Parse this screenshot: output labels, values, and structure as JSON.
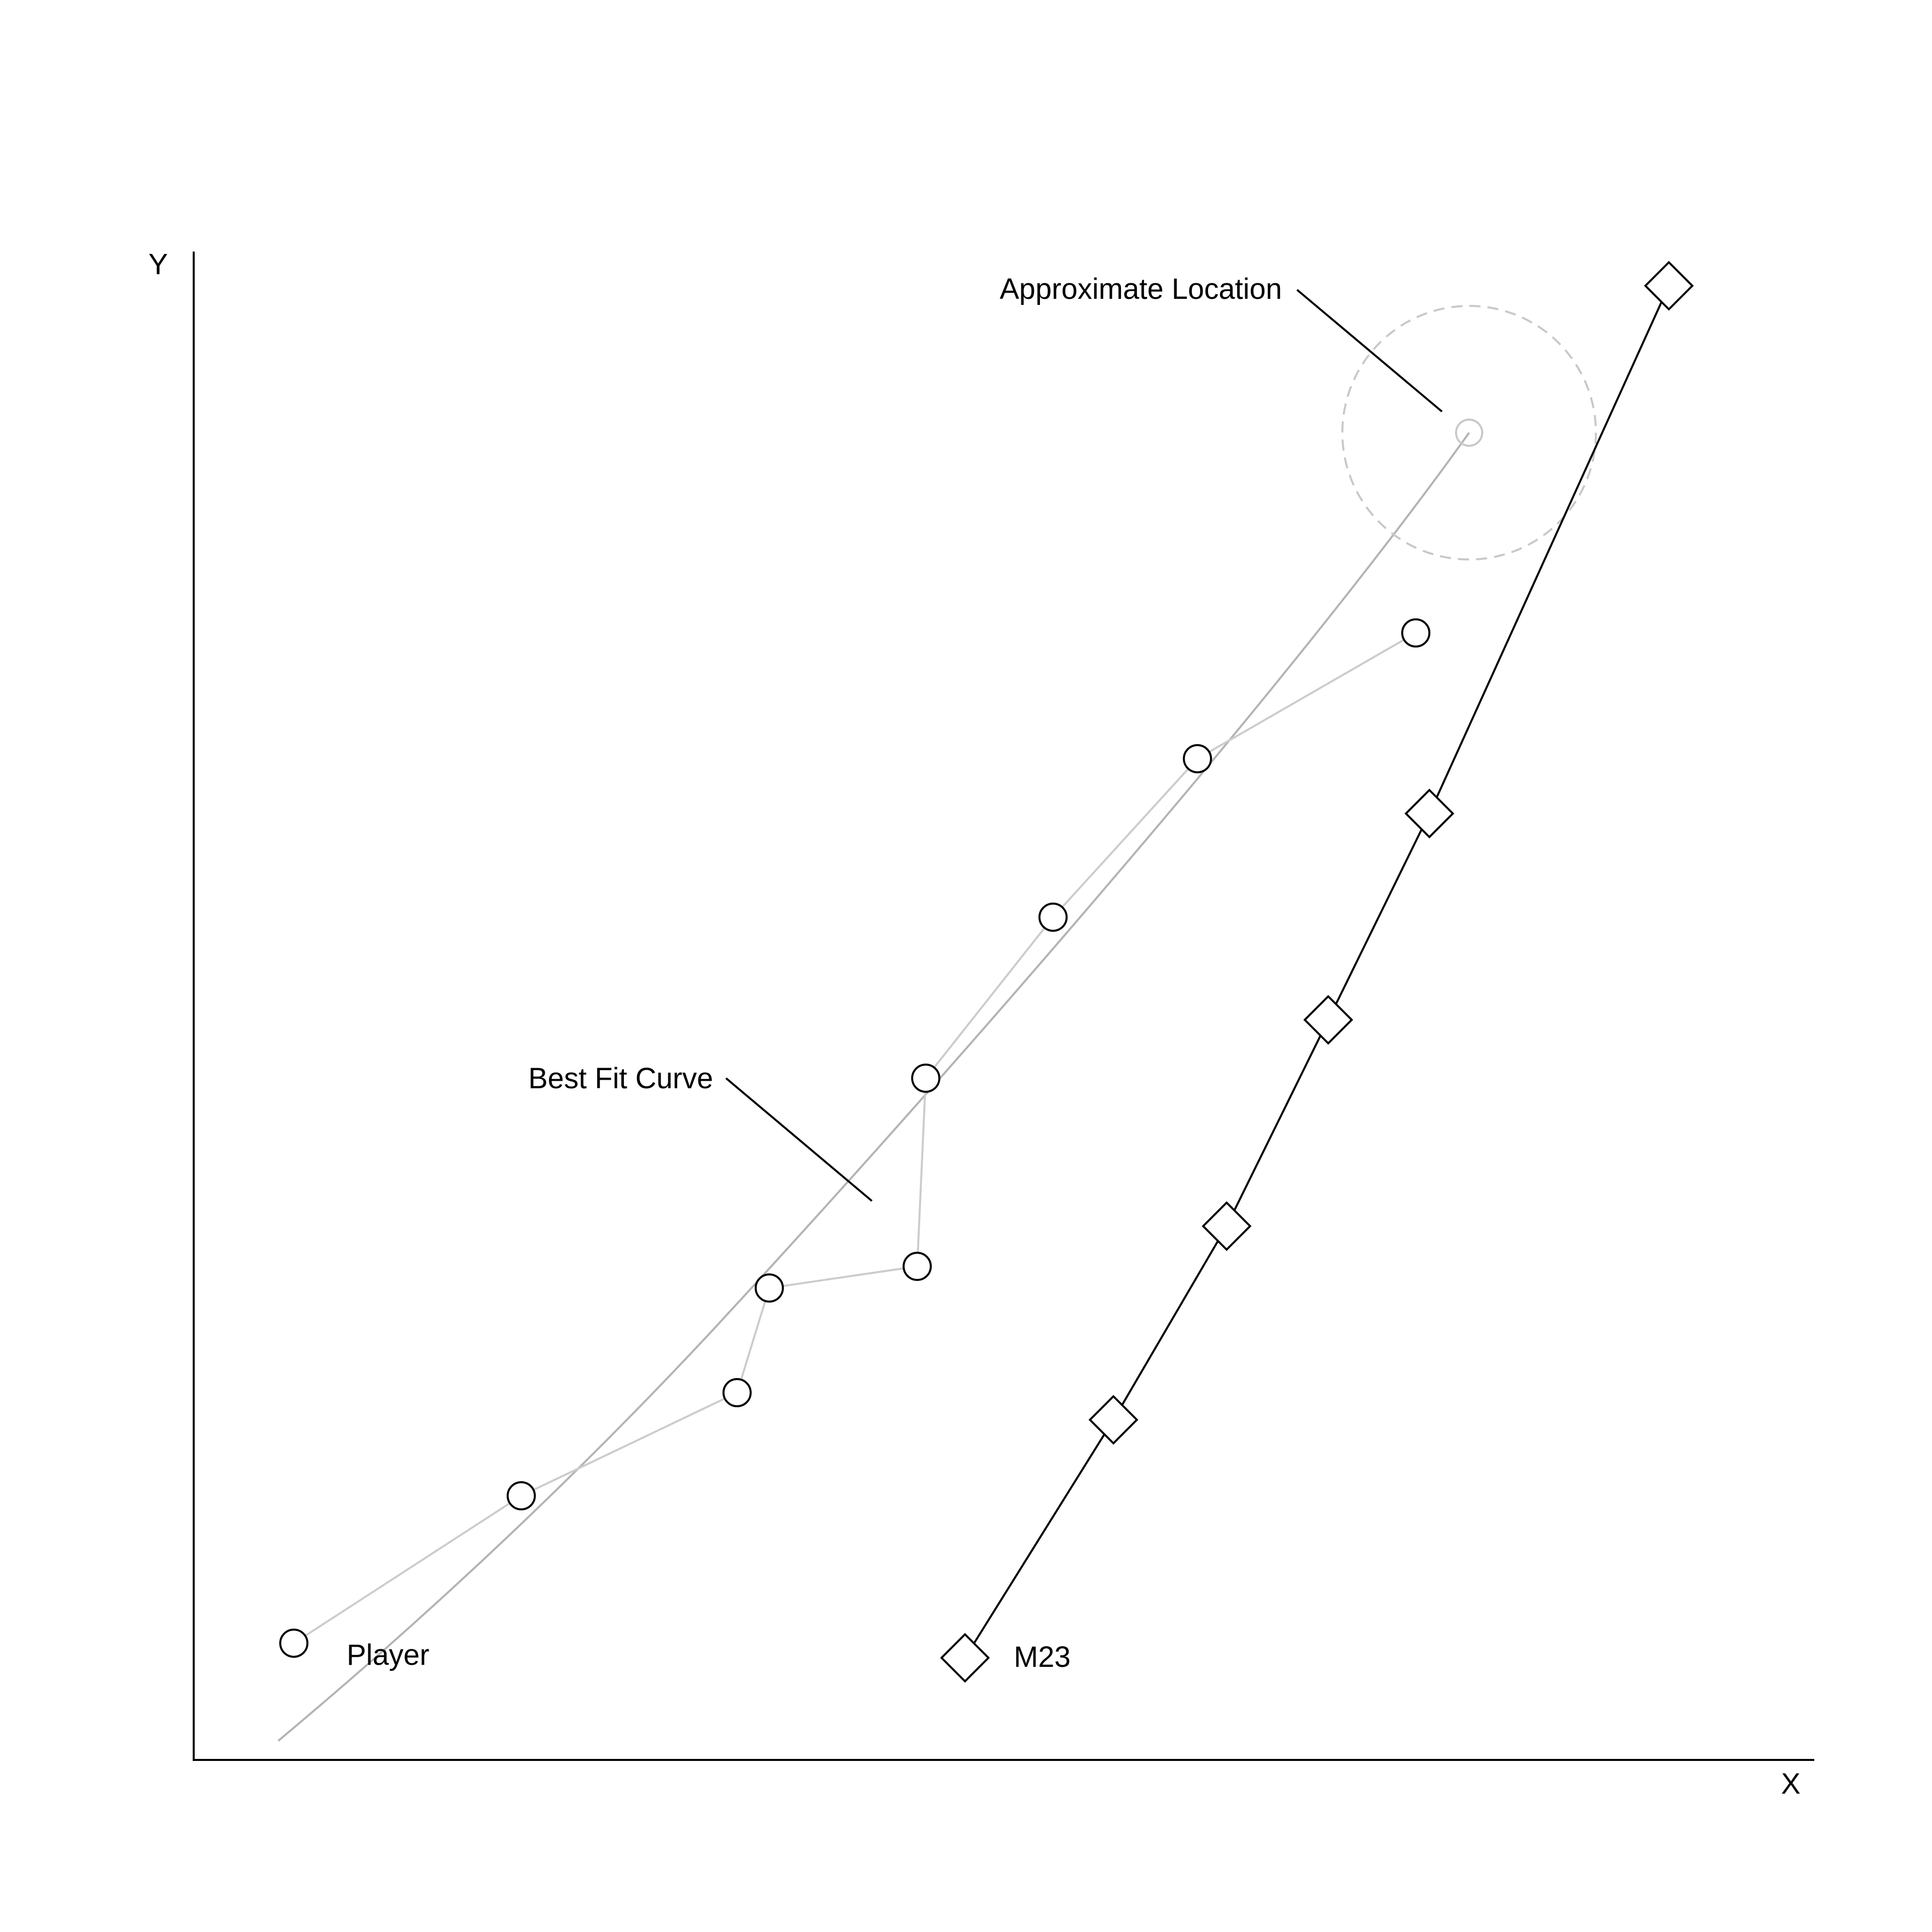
{
  "axes": {
    "x_label": "X",
    "y_label": "Y"
  },
  "labels": {
    "player": "Player",
    "m23": "M23",
    "best_fit": "Best Fit Curve",
    "approx": "Approximate Location"
  },
  "colors": {
    "axis": "#000000",
    "player_line": "#cccccc",
    "best_fit": "#b3b3b3",
    "approx_circle": "#c8c8c8",
    "marker": "#000000",
    "m23_line": "#000000"
  },
  "icons": {
    "player_marker": "circle",
    "m23_marker": "diamond"
  }
}
